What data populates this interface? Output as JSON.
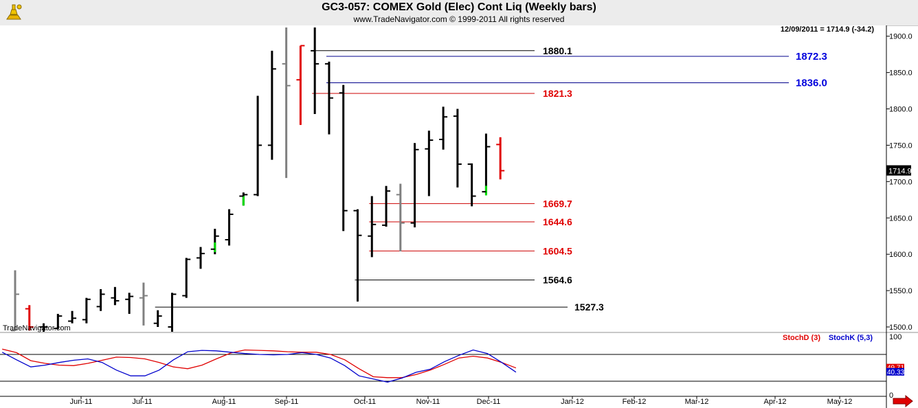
{
  "header": {
    "title": "GC3-057:  COMEX Gold (Elec) Cont Liq  (Weekly bars)",
    "copyright": "www.TradeNavigator.com © 1999-2011 All rights reserved",
    "watermark": "TradeNavigator.com"
  },
  "chart_data": {
    "type": "ohlc",
    "last_quote": "12/09/2011 = 1714.9 (-34.2)",
    "last_price_tag": "1714.9",
    "y_ticks": [
      "1500.0",
      "1550.0",
      "1600.0",
      "1650.0",
      "1700.0",
      "1750.0",
      "1800.0",
      "1850.0",
      "1900.0"
    ],
    "ylim": [
      1495,
      1910
    ],
    "x_labels": [
      "Jun-11",
      "Jul-11",
      "Aug-11",
      "Sep-11",
      "Oct-11",
      "Nov-11",
      "Dec-11",
      "Jan-12",
      "Feb-12",
      "Mar-12",
      "Apr-12",
      "May-12"
    ],
    "colors": {
      "up_down": "#000000",
      "inside": "#808080",
      "outside": "#e00000",
      "green": "#00cc00",
      "blue": "#0000cc",
      "red": "#e00000"
    },
    "bars": [
      {
        "i": 0,
        "h": 1578,
        "l": 1495,
        "o": 1495,
        "c": 1545,
        "color": "gray"
      },
      {
        "i": 1,
        "h": 1530,
        "l": 1495,
        "o": 1525,
        "c": 1500,
        "color": "red"
      },
      {
        "i": 2,
        "h": 1505,
        "l": 1492,
        "o": 1500,
        "c": 1500,
        "color": "black"
      },
      {
        "i": 3,
        "h": 1518,
        "l": 1497,
        "o": 1498,
        "c": 1515,
        "color": "black"
      },
      {
        "i": 4,
        "h": 1522,
        "l": 1505,
        "o": 1508,
        "c": 1512,
        "color": "black"
      },
      {
        "i": 5,
        "h": 1540,
        "l": 1505,
        "o": 1510,
        "c": 1538,
        "color": "black"
      },
      {
        "i": 6,
        "h": 1552,
        "l": 1522,
        "o": 1528,
        "c": 1545,
        "color": "black"
      },
      {
        "i": 7,
        "h": 1555,
        "l": 1530,
        "o": 1540,
        "c": 1536,
        "color": "black"
      },
      {
        "i": 8,
        "h": 1547,
        "l": 1518,
        "o": 1538,
        "c": 1542,
        "color": "black"
      },
      {
        "i": 9,
        "h": 1561,
        "l": 1502,
        "o": 1540,
        "c": 1543,
        "color": "gray"
      },
      {
        "i": 10,
        "h": 1523,
        "l": 1500,
        "o": 1505,
        "c": 1515,
        "color": "black"
      },
      {
        "i": 11,
        "h": 1547,
        "l": 1490,
        "o": 1500,
        "c": 1545,
        "color": "black"
      },
      {
        "i": 12,
        "h": 1595,
        "l": 1540,
        "o": 1543,
        "c": 1593,
        "color": "black"
      },
      {
        "i": 13,
        "h": 1610,
        "l": 1580,
        "o": 1595,
        "c": 1601,
        "color": "black"
      },
      {
        "i": 14,
        "h": 1635,
        "l": 1600,
        "o": 1607,
        "c": 1625,
        "color": "black",
        "greenTail": 1603
      },
      {
        "i": 15,
        "h": 1662,
        "l": 1612,
        "o": 1620,
        "c": 1655,
        "color": "black"
      },
      {
        "i": 16,
        "h": 1685,
        "l": 1667,
        "o": 1680,
        "c": 1682,
        "color": "black",
        "greenTail": 1667
      },
      {
        "i": 17,
        "h": 1818,
        "l": 1680,
        "o": 1682,
        "c": 1750,
        "color": "black"
      },
      {
        "i": 18,
        "h": 1880,
        "l": 1730,
        "o": 1750,
        "c": 1855,
        "color": "black"
      },
      {
        "i": 19,
        "h": 1912,
        "l": 1705,
        "o": 1862,
        "c": 1832,
        "color": "gray"
      },
      {
        "i": 20,
        "h": 1887,
        "l": 1778,
        "o": 1840,
        "c": 1887,
        "color": "red"
      },
      {
        "i": 21,
        "h": 1912,
        "l": 1793,
        "o": 1880,
        "c": 1862,
        "color": "black"
      },
      {
        "i": 22,
        "h": 1865,
        "l": 1765,
        "o": 1862,
        "c": 1815,
        "color": "black"
      },
      {
        "i": 23,
        "h": 1833,
        "l": 1632,
        "o": 1822,
        "c": 1660,
        "color": "black"
      },
      {
        "i": 24,
        "h": 1662,
        "l": 1535,
        "o": 1660,
        "c": 1626,
        "color": "black"
      },
      {
        "i": 25,
        "h": 1680,
        "l": 1596,
        "o": 1625,
        "c": 1641,
        "color": "black"
      },
      {
        "i": 26,
        "h": 1694,
        "l": 1638,
        "o": 1640,
        "c": 1687,
        "color": "black"
      },
      {
        "i": 27,
        "h": 1697,
        "l": 1604,
        "o": 1682,
        "c": 1643,
        "color": "gray"
      },
      {
        "i": 28,
        "h": 1753,
        "l": 1637,
        "o": 1643,
        "c": 1744,
        "color": "black"
      },
      {
        "i": 29,
        "h": 1770,
        "l": 1680,
        "o": 1745,
        "c": 1757,
        "color": "black"
      },
      {
        "i": 30,
        "h": 1803,
        "l": 1744,
        "o": 1758,
        "c": 1789,
        "color": "black"
      },
      {
        "i": 31,
        "h": 1800,
        "l": 1692,
        "o": 1790,
        "c": 1724,
        "color": "black"
      },
      {
        "i": 32,
        "h": 1725,
        "l": 1666,
        "o": 1724,
        "c": 1680,
        "color": "black"
      },
      {
        "i": 33,
        "h": 1766,
        "l": 1683,
        "o": 1686,
        "c": 1748,
        "color": "black",
        "greenTail": 1681
      },
      {
        "i": 34,
        "h": 1761,
        "l": 1703,
        "o": 1751,
        "c": 1715,
        "color": "red"
      }
    ],
    "levels": [
      {
        "value": 1880.1,
        "label": "1880.1",
        "color": "#000000",
        "startBar": 21,
        "endX": 778,
        "labelX": 790,
        "labelColor": "#000000",
        "big": false
      },
      {
        "value": 1872.3,
        "label": "1872.3",
        "color": "#00008b",
        "startBar": 22,
        "endX": 1148,
        "labelX": 1158,
        "labelColor": "#0000dd",
        "big": true
      },
      {
        "value": 1836.0,
        "label": "1836.0",
        "color": "#00008b",
        "startBar": 22,
        "endX": 1148,
        "labelX": 1158,
        "labelColor": "#0000dd",
        "big": true
      },
      {
        "value": 1821.3,
        "label": "1821.3",
        "color": "#cc0000",
        "startBar": 21,
        "endX": 778,
        "labelX": 790,
        "labelColor": "#e00000",
        "big": false
      },
      {
        "value": 1669.7,
        "label": "1669.7",
        "color": "#cc0000",
        "startBar": 25,
        "endX": 778,
        "labelX": 790,
        "labelColor": "#e00000",
        "big": false
      },
      {
        "value": 1644.6,
        "label": "1644.6",
        "color": "#cc0000",
        "startBar": 25,
        "endX": 778,
        "labelX": 790,
        "labelColor": "#e00000",
        "big": false
      },
      {
        "value": 1604.5,
        "label": "1604.5",
        "color": "#cc0000",
        "startBar": 25,
        "endX": 778,
        "labelX": 790,
        "labelColor": "#e00000",
        "big": false
      },
      {
        "value": 1564.6,
        "label": "1564.6",
        "color": "#000000",
        "startBar": 24,
        "endX": 778,
        "labelX": 790,
        "labelColor": "#000000",
        "big": false
      },
      {
        "value": 1527.3,
        "label": "1527.3",
        "color": "#000000",
        "startBar": 10,
        "endX": 826,
        "labelX": 836,
        "labelColor": "#000000",
        "big": false
      }
    ],
    "stoch": {
      "ylim": [
        0,
        100
      ],
      "y_ticks": [
        "100",
        "0"
      ],
      "stochD_label": "StochD (3)",
      "stochK_label": "StochK (5,3)",
      "stochD_value": "49.71",
      "stochK_value": "40.33",
      "stochD": [
        92,
        84,
        66,
        60,
        56,
        55,
        60,
        67,
        74,
        73,
        70,
        62,
        52,
        48,
        56,
        70,
        83,
        90,
        89,
        88,
        86,
        85,
        85,
        80,
        68,
        48,
        30,
        28,
        28,
        35,
        45,
        58,
        72,
        76,
        72,
        62,
        49.71
      ],
      "stochK": [
        85,
        68,
        52,
        56,
        62,
        67,
        70,
        62,
        45,
        32,
        32,
        45,
        68,
        86,
        89,
        88,
        85,
        82,
        80,
        79,
        80,
        84,
        80,
        72,
        55,
        32,
        25,
        18,
        27,
        40,
        47,
        64,
        78,
        90,
        82,
        62,
        40.33
      ],
      "levels": [
        80,
        20
      ]
    }
  }
}
